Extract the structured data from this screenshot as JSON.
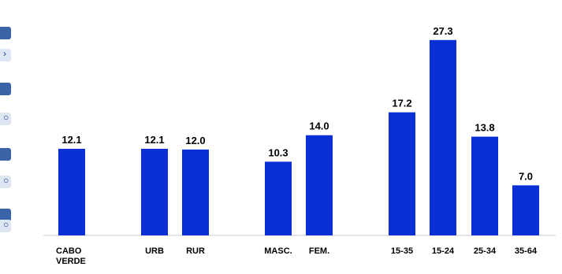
{
  "colors": {
    "bar": "#0a2fd6",
    "axis": "#c9c9c9",
    "label": "#000000",
    "strip_dark": "#3b64a8",
    "strip_light": "#dfe6f3"
  },
  "chart_data": {
    "type": "bar",
    "title": "",
    "xlabel": "",
    "ylabel": "",
    "ylim": [
      0,
      30
    ],
    "grid": false,
    "legend": "none",
    "categories": [
      [
        "CABO",
        "VERDE"
      ],
      [
        "URB"
      ],
      [
        "RUR"
      ],
      [
        "MASC."
      ],
      [
        "FEM."
      ],
      [
        "15-35"
      ],
      [
        "15-24"
      ],
      [
        "25-34"
      ],
      [
        "35-64"
      ]
    ],
    "values": [
      12.1,
      12.1,
      12.0,
      10.3,
      14.0,
      17.2,
      27.3,
      13.8,
      7.0
    ],
    "value_labels": [
      "12.1",
      "12.1",
      "12.0",
      "10.3",
      "14.0",
      "17.2",
      "27.3",
      "13.8",
      "7.0"
    ]
  }
}
